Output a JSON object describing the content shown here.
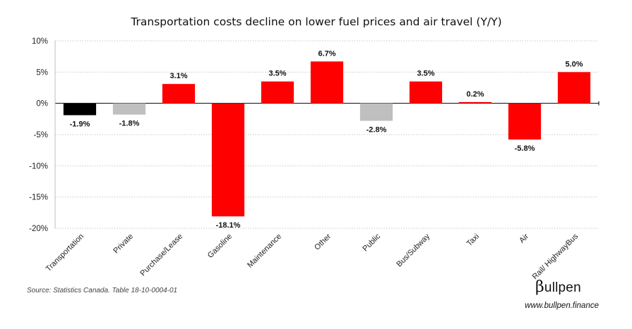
{
  "chart_data": {
    "type": "bar",
    "title": "Transportation costs decline on lower fuel prices and air travel (Y/Y)",
    "categories": [
      "Transportation",
      "Private",
      "Purchase/Lease",
      "Gasoline",
      "Maintenance",
      "Other",
      "Public",
      "Bus/Subway",
      "Taxi",
      "Air",
      "Rail/ HighwayBus"
    ],
    "values": [
      -1.9,
      -1.8,
      3.1,
      -18.1,
      3.5,
      6.7,
      -2.8,
      3.5,
      0.2,
      -5.8,
      5.0
    ],
    "data_labels": [
      "-1.9%",
      "-1.8%",
      "3.1%",
      "-18.1%",
      "3.5%",
      "6.7%",
      "-2.8%",
      "3.5%",
      "0.2%",
      "-5.8%",
      "5.0%"
    ],
    "bar_colors": [
      "#000000",
      "#bfbfbf",
      "#ff0000",
      "#ff0000",
      "#ff0000",
      "#ff0000",
      "#bfbfbf",
      "#ff0000",
      "#ff0000",
      "#ff0000",
      "#ff0000"
    ],
    "yticks": [
      10,
      5,
      0,
      -5,
      -10,
      -15,
      -20
    ],
    "ytick_labels": [
      "10%",
      "5%",
      "0%",
      "-5%",
      "-10%",
      "-15%",
      "-20%"
    ],
    "ylim": [
      -20,
      10
    ],
    "xlabel": "",
    "ylabel": "",
    "grid": "horizontal dotted",
    "legend": "none"
  },
  "footer": {
    "source": "Source: Statistics Canada. Table 18-10-0004-01",
    "logo_symbol": "β",
    "logo_text": "ullpen",
    "website": "www.bullpen.finance"
  }
}
